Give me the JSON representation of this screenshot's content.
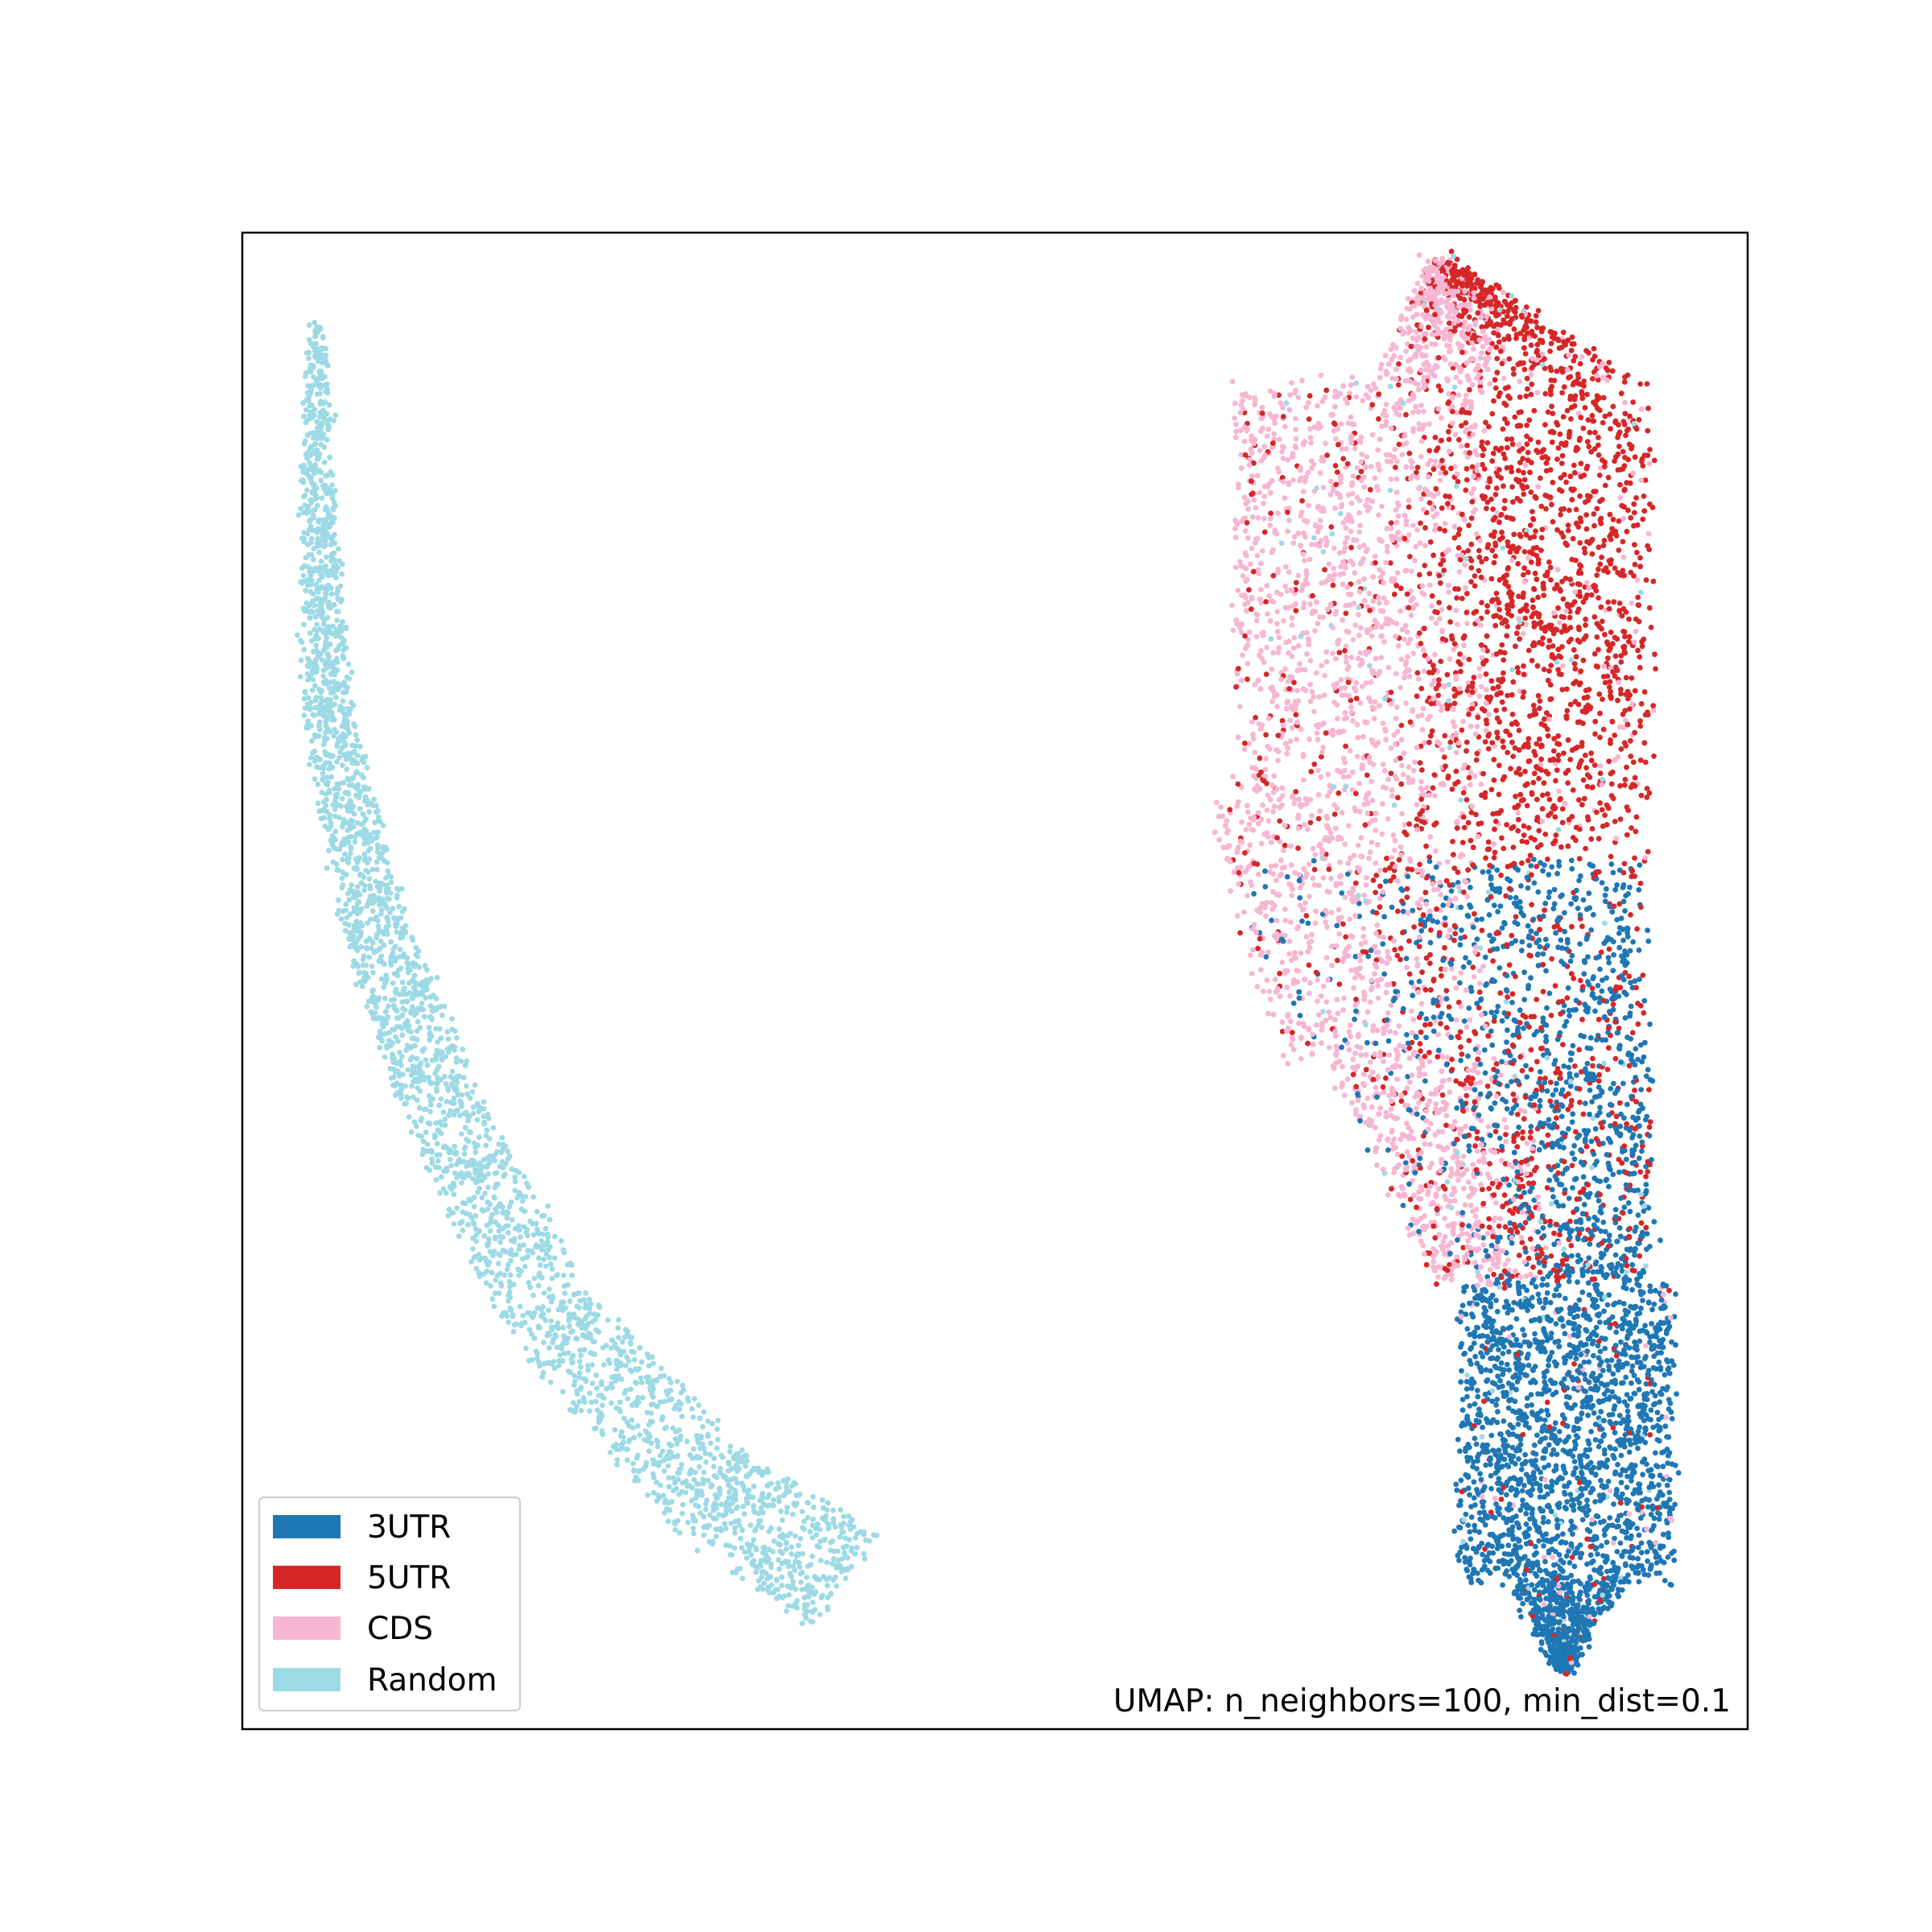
{
  "chart_data": {
    "type": "scatter",
    "annotation": "UMAP: n_neighbors=100, min_dist=0.1",
    "axes": {
      "ticks": "none",
      "frame": true,
      "grid": false
    },
    "legend": {
      "placement": "lower-left",
      "entries": [
        {
          "label": "3UTR",
          "color": "#1f77b4"
        },
        {
          "label": "5UTR",
          "color": "#d62728"
        },
        {
          "label": "CDS",
          "color": "#f7b6d2"
        },
        {
          "label": "Random",
          "color": "#9edae5"
        }
      ]
    },
    "series": [
      {
        "name": "Random",
        "color": "#9edae5",
        "cluster": "left arc",
        "shape": "curved band from top-left tip down to bottom-center",
        "centerline": [
          [
            0.05,
            0.94
          ],
          [
            0.05,
            0.8
          ],
          [
            0.06,
            0.66
          ],
          [
            0.09,
            0.53
          ],
          [
            0.14,
            0.4
          ],
          [
            0.21,
            0.27
          ],
          [
            0.31,
            0.16
          ],
          [
            0.4,
            0.1
          ]
        ],
        "approx_points": 3000
      },
      {
        "name": "5UTR",
        "color": "#d62728",
        "cluster": "right group, upper-right",
        "x_range": [
          0.78,
          0.93
        ],
        "y_range": [
          0.48,
          0.96
        ],
        "approx_points": 2600
      },
      {
        "name": "CDS",
        "color": "#f7b6d2",
        "cluster": "right group, upper-left",
        "x_range": [
          0.64,
          0.86
        ],
        "y_range": [
          0.37,
          0.93
        ],
        "approx_points": 2800
      },
      {
        "name": "3UTR",
        "color": "#1f77b4",
        "cluster": "right group, lower tail",
        "x_range": [
          0.8,
          0.95
        ],
        "y_range": [
          0.04,
          0.62
        ],
        "approx_points": 3000
      }
    ]
  }
}
